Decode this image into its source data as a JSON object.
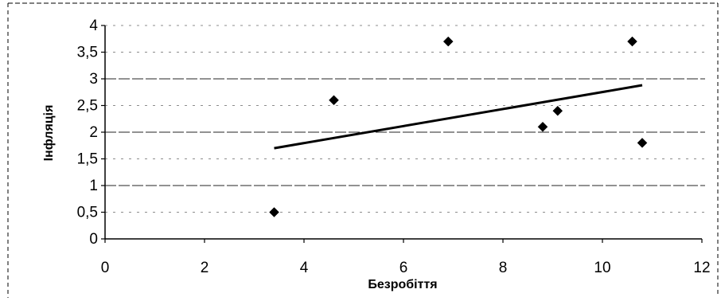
{
  "chart_data": {
    "type": "scatter",
    "title": "",
    "xlabel": "Безробіття",
    "ylabel": "Інфляція",
    "xlim": [
      0,
      12
    ],
    "ylim": [
      0,
      4
    ],
    "x_ticks": [
      0,
      2,
      4,
      6,
      8,
      10,
      12
    ],
    "y_ticks": [
      0,
      0.5,
      1,
      1.5,
      2,
      2.5,
      3,
      3.5,
      4
    ],
    "x_tick_labels": [
      "0",
      "2",
      "4",
      "6",
      "8",
      "10",
      "12"
    ],
    "y_tick_labels": [
      "0",
      "0,5",
      "1",
      "1,5",
      "2",
      "2,5",
      "3",
      "3,5",
      "4"
    ],
    "grid": "horizontal",
    "legend": "none",
    "points": [
      {
        "x": 3.4,
        "y": 0.5
      },
      {
        "x": 4.6,
        "y": 2.6
      },
      {
        "x": 6.9,
        "y": 3.7
      },
      {
        "x": 8.8,
        "y": 2.1
      },
      {
        "x": 9.1,
        "y": 2.4
      },
      {
        "x": 10.6,
        "y": 3.7
      },
      {
        "x": 10.8,
        "y": 1.8
      }
    ],
    "trendline": {
      "type": "linear",
      "from": {
        "x": 3.4,
        "y": 1.7
      },
      "to": {
        "x": 10.8,
        "y": 2.88
      }
    },
    "colors": {
      "marker": "#000000",
      "trendline": "#000000",
      "gridline": "#000000",
      "axis": "#000000"
    }
  }
}
